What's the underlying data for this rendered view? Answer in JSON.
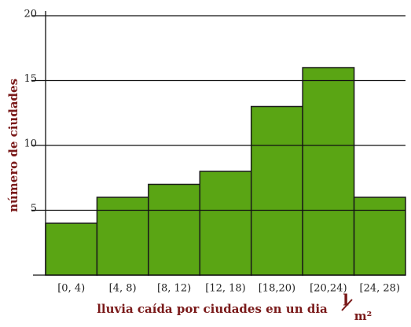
{
  "chart_data": {
    "type": "bar",
    "categories": [
      "[0, 4)",
      "[4, 8)",
      "[8, 12)",
      "[12, 18)",
      "[18,20)",
      "[20,24)",
      "[24, 28)"
    ],
    "values": [
      4,
      6,
      7,
      8,
      13,
      16,
      6
    ],
    "color": "#5aa514",
    "ylim": [
      0,
      20
    ],
    "yticks": [
      5,
      10,
      15,
      20
    ],
    "grid": true,
    "xlabel": "lluvia caída por ciudades en un dia",
    "xunit_numerator": "l",
    "xunit_denominator": "m²",
    "ylabel": "número de ciudades"
  }
}
